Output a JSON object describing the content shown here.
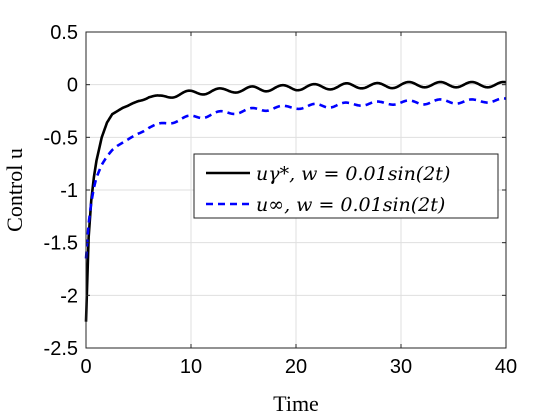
{
  "chart_data": {
    "type": "line",
    "xlabel": "Time",
    "ylabel": "Control u",
    "xlim": [
      0,
      40
    ],
    "ylim": [
      -2.5,
      0.5
    ],
    "xticks": [
      0,
      10,
      20,
      30,
      40
    ],
    "yticks": [
      -2.5,
      -2,
      -1.5,
      -1,
      -0.5,
      0,
      0.5
    ],
    "xtick_labels": [
      "0",
      "10",
      "20",
      "30",
      "40"
    ],
    "ytick_labels": [
      "-2.5",
      "-2",
      "-1.5",
      "-1",
      "-0.5",
      "0",
      "0.5"
    ],
    "grid": true,
    "legend_position": "center-right",
    "series": [
      {
        "name": "u_γ*, w = 0.01sin(2t)",
        "name_display": "uγ*, w = 0.01sin(2t)",
        "color": "#000000",
        "style": "solid",
        "x": [
          0,
          0.25,
          0.5,
          0.75,
          1,
          1.5,
          2,
          2.5,
          3,
          3.5,
          4,
          5,
          6,
          7,
          8,
          9,
          10,
          11,
          12,
          13,
          14,
          15,
          16,
          17,
          18,
          19,
          20,
          21,
          22,
          23,
          24,
          25,
          26,
          27,
          28,
          29,
          30,
          31,
          32,
          33,
          34,
          35,
          36,
          37,
          38,
          39,
          40
        ],
        "values": [
          -2.25,
          -1.45,
          -1.1,
          -0.88,
          -0.72,
          -0.5,
          -0.36,
          -0.28,
          -0.25,
          -0.22,
          -0.2,
          -0.15,
          -0.12,
          -0.12,
          -0.1,
          -0.09,
          -0.08,
          -0.07,
          -0.06,
          -0.06,
          -0.05,
          -0.05,
          -0.04,
          -0.04,
          -0.03,
          -0.03,
          -0.03,
          -0.02,
          -0.02,
          -0.02,
          -0.02,
          -0.01,
          -0.01,
          -0.01,
          -0.01,
          -0.01,
          0,
          0,
          0,
          0,
          0,
          0,
          0,
          0,
          0,
          0,
          0
        ],
        "ripple_amplitude": 0.025,
        "ripple_period": 3.0
      },
      {
        "name": "u_∞, w = 0.01sin(2t)",
        "name_display": "u∞, w = 0.01sin(2t)",
        "color": "#0000ff",
        "style": "dashed",
        "x": [
          0,
          0.25,
          0.5,
          0.75,
          1,
          1.5,
          2,
          2.5,
          3,
          3.5,
          4,
          5,
          6,
          7,
          8,
          9,
          10,
          11,
          12,
          13,
          14,
          15,
          16,
          17,
          18,
          19,
          20,
          21,
          22,
          23,
          24,
          25,
          26,
          27,
          28,
          29,
          30,
          31,
          32,
          33,
          34,
          35,
          36,
          37,
          38,
          39,
          40
        ],
        "values": [
          -1.65,
          -1.32,
          -1.12,
          -0.98,
          -0.88,
          -0.76,
          -0.68,
          -0.62,
          -0.58,
          -0.55,
          -0.52,
          -0.46,
          -0.41,
          -0.38,
          -0.35,
          -0.33,
          -0.31,
          -0.3,
          -0.28,
          -0.27,
          -0.26,
          -0.25,
          -0.24,
          -0.23,
          -0.22,
          -0.22,
          -0.21,
          -0.21,
          -0.2,
          -0.2,
          -0.19,
          -0.19,
          -0.18,
          -0.18,
          -0.18,
          -0.17,
          -0.17,
          -0.17,
          -0.17,
          -0.16,
          -0.16,
          -0.16,
          -0.16,
          -0.16,
          -0.15,
          -0.15,
          -0.15
        ],
        "ripple_amplitude": 0.02,
        "ripple_period": 3.0
      }
    ]
  }
}
